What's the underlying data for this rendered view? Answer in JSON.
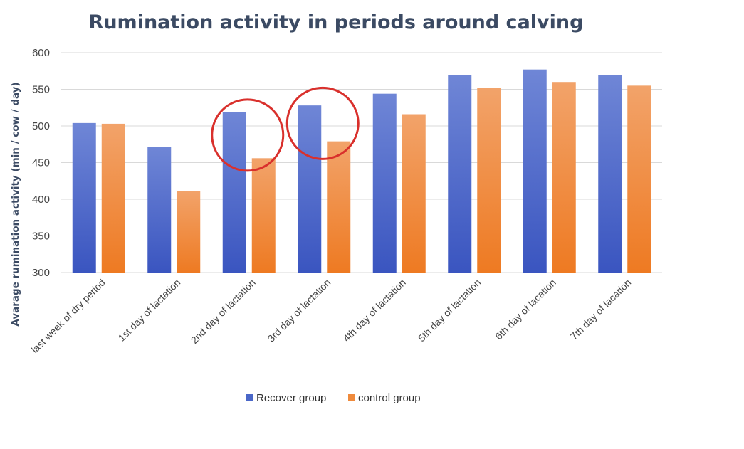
{
  "chart_data": {
    "type": "bar",
    "title": "Rumination activity in periods around calving",
    "ylabel": "Avarage rumination activity (min / cow / day)",
    "xlabel": "",
    "ylim": [
      300,
      600
    ],
    "yticks": [
      300,
      350,
      400,
      450,
      500,
      550,
      600
    ],
    "grid": true,
    "legend_position": "bottom",
    "categories": [
      "last week of dry period",
      "1st day of lactation",
      "2nd day of lactation",
      "3rd day of lactation",
      "4th day of lactation",
      "5th day of lactation",
      "6th day of lacation",
      "7th day of lacation"
    ],
    "series": [
      {
        "name": "Recover group",
        "color": "#4a67c8",
        "values": [
          504,
          471,
          519,
          528,
          544,
          569,
          577,
          569
        ]
      },
      {
        "name": "control group",
        "color": "#ef8a3c",
        "values": [
          503,
          411,
          456,
          479,
          516,
          552,
          560,
          555
        ]
      }
    ],
    "annotations": [
      {
        "type": "circle",
        "color": "#d9302c",
        "category_index": 2
      },
      {
        "type": "circle",
        "color": "#d9302c",
        "category_index": 3
      }
    ]
  }
}
